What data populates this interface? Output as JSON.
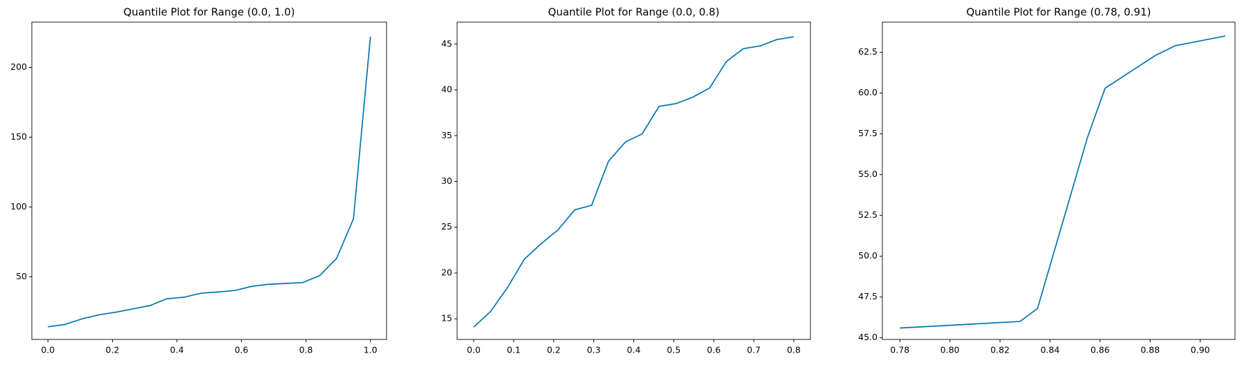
{
  "chart_data": [
    {
      "type": "line",
      "title": "Quantile Plot for Range (0.0, 1.0)",
      "x": [
        0,
        0.0526,
        0.1053,
        0.1579,
        0.2105,
        0.2632,
        0.3158,
        0.3684,
        0.4211,
        0.4737,
        0.5263,
        0.5789,
        0.6316,
        0.6842,
        0.7368,
        0.7895,
        0.8421,
        0.8947,
        0.9474,
        1.0
      ],
      "series": [
        {
          "color": "#0173b2",
          "values": [
            14.1,
            15.8,
            19.8,
            22.7,
            24.6,
            27.0,
            29.3,
            34.2,
            35.3,
            38.2,
            39.1,
            40.1,
            43.1,
            44.6,
            45.2,
            45.8,
            50.7,
            63.0,
            91.5,
            222.0
          ]
        }
      ],
      "xlim": [
        -0.05,
        1.05
      ],
      "ylim": [
        5.1,
        232.4
      ],
      "xticks": [
        {
          "value": 0,
          "label": "0.0"
        },
        {
          "value": 0.2,
          "label": "0.2"
        },
        {
          "value": 0.4,
          "label": "0.4"
        },
        {
          "value": 0.6,
          "label": "0.6"
        },
        {
          "value": 0.8,
          "label": "0.8"
        },
        {
          "value": 1.0,
          "label": "1.0"
        }
      ],
      "yticks": [
        50,
        100,
        150,
        200
      ]
    },
    {
      "type": "line",
      "title": "Quantile Plot for Range (0.0, 0.8)",
      "x": [
        0,
        0.0421,
        0.0842,
        0.1263,
        0.1684,
        0.2105,
        0.2526,
        0.2947,
        0.3368,
        0.3789,
        0.4211,
        0.4632,
        0.5053,
        0.5474,
        0.5895,
        0.6316,
        0.6737,
        0.7158,
        0.7579,
        0.8
      ],
      "series": [
        {
          "color": "#0173b2",
          "values": [
            14.1,
            15.8,
            18.4,
            21.5,
            23.2,
            24.7,
            26.9,
            27.4,
            32.2,
            34.3,
            35.2,
            38.2,
            38.5,
            39.2,
            40.2,
            43.1,
            44.5,
            44.8,
            45.5,
            45.8
          ]
        }
      ],
      "xlim": [
        -0.0416,
        0.8416
      ],
      "ylim": [
        12.75,
        47.4
      ],
      "xticks": [
        {
          "value": 0,
          "label": "0.0"
        },
        {
          "value": 0.1,
          "label": "0.1"
        },
        {
          "value": 0.2,
          "label": "0.2"
        },
        {
          "value": 0.3,
          "label": "0.3"
        },
        {
          "value": 0.4,
          "label": "0.4"
        },
        {
          "value": 0.5,
          "label": "0.5"
        },
        {
          "value": 0.6,
          "label": "0.6"
        },
        {
          "value": 0.7,
          "label": "0.7"
        },
        {
          "value": 0.8,
          "label": "0.8"
        }
      ],
      "yticks": [
        15,
        20,
        25,
        30,
        35,
        40,
        45
      ]
    },
    {
      "type": "line",
      "title": "Quantile Plot for Range (0.78, 0.91)",
      "x": [
        0.78,
        0.828,
        0.835,
        0.855,
        0.862,
        0.882,
        0.89,
        0.91
      ],
      "series": [
        {
          "color": "#0173b2",
          "values": [
            45.6,
            46.0,
            46.8,
            57.3,
            60.3,
            62.3,
            62.9,
            63.5
          ]
        }
      ],
      "xlim": [
        0.773,
        0.9139
      ],
      "ylim": [
        44.9,
        64.35
      ],
      "xticks": [
        {
          "value": 0.78,
          "label": "0.78"
        },
        {
          "value": 0.8,
          "label": "0.80"
        },
        {
          "value": 0.82,
          "label": "0.82"
        },
        {
          "value": 0.84,
          "label": "0.84"
        },
        {
          "value": 0.86,
          "label": "0.86"
        },
        {
          "value": 0.88,
          "label": "0.88"
        },
        {
          "value": 0.9,
          "label": "0.90"
        }
      ],
      "yticks": [
        {
          "value": 45,
          "label": "45.0"
        },
        {
          "value": 47.5,
          "label": "47.5"
        },
        {
          "value": 50,
          "label": "50.0"
        },
        {
          "value": 52.5,
          "label": "52.5"
        },
        {
          "value": 55,
          "label": "55.0"
        },
        {
          "value": 57.5,
          "label": "57.5"
        },
        {
          "value": 60,
          "label": "60.0"
        },
        {
          "value": 62.5,
          "label": "62.5"
        }
      ]
    }
  ]
}
